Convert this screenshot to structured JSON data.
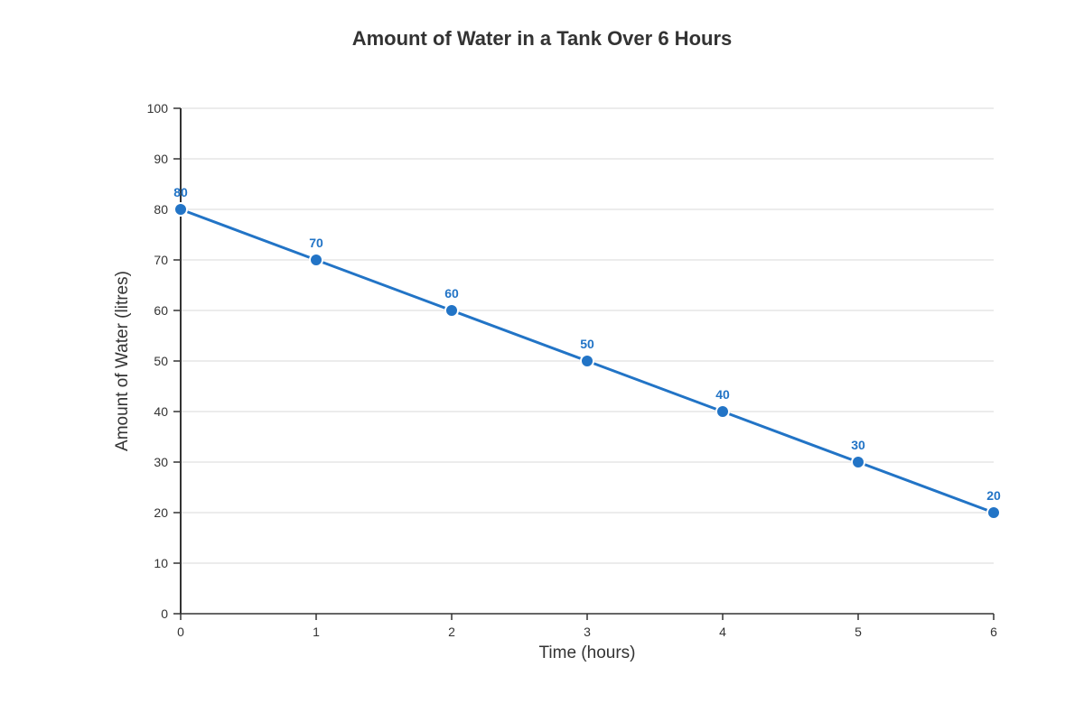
{
  "chart_data": {
    "type": "line",
    "title": "Amount of Water in a Tank Over 6 Hours",
    "xlabel": "Time (hours)",
    "ylabel": "Amount of Water (litres)",
    "x": [
      0,
      1,
      2,
      3,
      4,
      5,
      6
    ],
    "series": [
      {
        "values": [
          80,
          70,
          60,
          50,
          40,
          30,
          20
        ]
      }
    ],
    "xlim": [
      0,
      6
    ],
    "ylim": [
      0,
      100
    ],
    "x_ticks": [
      "0",
      "1",
      "2",
      "3",
      "4",
      "5",
      "6"
    ],
    "y_ticks": [
      "0",
      "10",
      "20",
      "30",
      "40",
      "50",
      "60",
      "70",
      "80",
      "90",
      "100"
    ],
    "data_labels": [
      "80",
      "70",
      "60",
      "50",
      "40",
      "30",
      "20"
    ],
    "grid": true,
    "legend": "none"
  },
  "colors": {
    "line": "#2274c6",
    "label": "#2274c6",
    "grid": "#e5e5e5",
    "axis": "#333333",
    "text": "#333333"
  }
}
